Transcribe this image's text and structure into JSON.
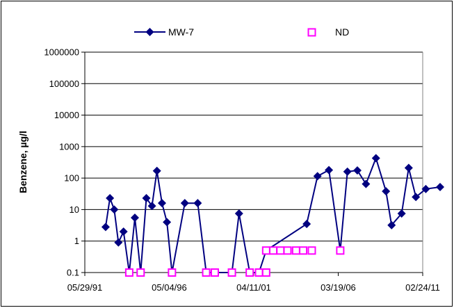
{
  "chart_data": {
    "type": "line",
    "title": "",
    "xlabel": "",
    "ylabel": "Benzene, µg/l",
    "yscale": "log",
    "ylim": [
      0.1,
      1000000
    ],
    "xlim": [
      "05/29/91",
      "02/24/11"
    ],
    "x_tick_labels": [
      "05/29/91",
      "05/04/96",
      "04/11/01",
      "03/19/06",
      "02/24/11"
    ],
    "y_tick_labels": [
      "0.1",
      "1",
      "10",
      "100",
      "1000",
      "10000",
      "100000",
      "1000000"
    ],
    "grid": true,
    "legend_position": "top",
    "colors": {
      "mw7": "#000080",
      "nd": "#ff00ff",
      "grid": "#000000"
    },
    "series": [
      {
        "name": "MW-7",
        "marker": "diamond",
        "points": [
          {
            "x": "1992-08-15",
            "y": 2.8
          },
          {
            "x": "1992-11-15",
            "y": 23
          },
          {
            "x": "1993-02-15",
            "y": 10
          },
          {
            "x": "1993-05-15",
            "y": 0.9
          },
          {
            "x": "1993-09-01",
            "y": 2.0
          },
          {
            "x": "1994-01-01",
            "y": 0.1
          },
          {
            "x": "1994-05-01",
            "y": 5.5
          },
          {
            "x": "1994-09-01",
            "y": 0.1
          },
          {
            "x": "1995-01-01",
            "y": 23
          },
          {
            "x": "1995-05-01",
            "y": 13
          },
          {
            "x": "1995-08-15",
            "y": 170
          },
          {
            "x": "1995-12-01",
            "y": 16
          },
          {
            "x": "1996-03-15",
            "y": 4
          },
          {
            "x": "1996-07-01",
            "y": 0.1
          },
          {
            "x": "1997-04-01",
            "y": 16
          },
          {
            "x": "1998-01-01",
            "y": 16
          },
          {
            "x": "1998-07-01",
            "y": 0.1
          },
          {
            "x": "2000-01-01",
            "y": 0.1
          },
          {
            "x": "2000-06-01",
            "y": 7.5
          },
          {
            "x": "2001-01-15",
            "y": 0.1
          },
          {
            "x": "2001-08-01",
            "y": 0.1
          },
          {
            "x": "2002-01-01",
            "y": 0.5
          },
          {
            "x": "2004-05-15",
            "y": 3.5
          },
          {
            "x": "2005-01-01",
            "y": 115
          },
          {
            "x": "2005-09-01",
            "y": 180
          },
          {
            "x": "2006-05-01",
            "y": 0.5
          },
          {
            "x": "2006-10-01",
            "y": 160
          },
          {
            "x": "2007-05-01",
            "y": 175
          },
          {
            "x": "2007-11-01",
            "y": 65
          },
          {
            "x": "2008-06-01",
            "y": 430
          },
          {
            "x": "2009-01-01",
            "y": 38
          },
          {
            "x": "2009-05-01",
            "y": 3.2
          },
          {
            "x": "2009-12-01",
            "y": 7.5
          },
          {
            "x": "2010-05-01",
            "y": 210
          },
          {
            "x": "2010-10-01",
            "y": 25
          },
          {
            "x": "2011-05-01",
            "y": 45
          },
          {
            "x": "2012-03-01",
            "y": 52
          }
        ]
      },
      {
        "name": "ND",
        "marker": "open-square",
        "points": [
          {
            "x": "1994-01-01",
            "y": 0.1
          },
          {
            "x": "1994-09-01",
            "y": 0.1
          },
          {
            "x": "1996-07-01",
            "y": 0.1
          },
          {
            "x": "1998-07-01",
            "y": 0.1
          },
          {
            "x": "1999-01-01",
            "y": 0.1
          },
          {
            "x": "2000-01-01",
            "y": 0.1
          },
          {
            "x": "2001-01-15",
            "y": 0.1
          },
          {
            "x": "2001-08-01",
            "y": 0.1
          },
          {
            "x": "2002-01-01",
            "y": 0.1
          },
          {
            "x": "2002-01-01",
            "y": 0.5
          },
          {
            "x": "2002-06-01",
            "y": 0.5
          },
          {
            "x": "2002-11-01",
            "y": 0.5
          },
          {
            "x": "2003-04-01",
            "y": 0.5
          },
          {
            "x": "2003-10-01",
            "y": 0.5
          },
          {
            "x": "2004-03-01",
            "y": 0.5
          },
          {
            "x": "2004-09-01",
            "y": 0.5
          },
          {
            "x": "2006-05-01",
            "y": 0.5
          }
        ]
      }
    ]
  }
}
